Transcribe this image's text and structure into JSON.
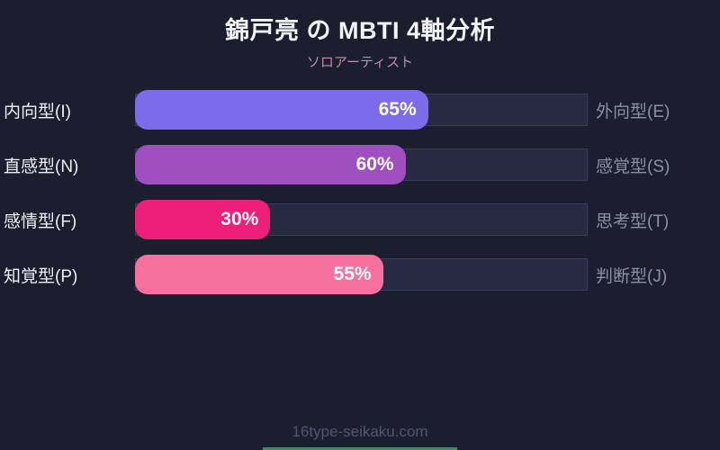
{
  "header": {
    "title": "錦戸亮 の MBTI 4軸分析",
    "subtitle": "ソロアーティスト"
  },
  "footer": {
    "site": "16type-seikaku.com"
  },
  "colors": {
    "background": "#1b1e2f",
    "track": "#272b42",
    "track_border": "#3a3e5c",
    "title_text": "#f5f5f8",
    "subtitle_text": "#c48ea8",
    "left_label_text": "#eef0f5",
    "right_label_text": "#8b90a6",
    "footer_text": "#525770",
    "bottom_accent": "#3e8e5a"
  },
  "chart_data": {
    "type": "bar",
    "orientation": "horizontal",
    "title": "錦戸亮 の MBTI 4軸分析",
    "subtitle": "ソロアーティスト",
    "xlim": [
      0,
      100
    ],
    "grid": false,
    "legend": false,
    "rows": [
      {
        "left_label": "内向型(I)",
        "right_label": "外向型(E)",
        "value": 65,
        "value_label": "65%",
        "color": "#7c6bea"
      },
      {
        "left_label": "直感型(N)",
        "right_label": "感覚型(S)",
        "value": 60,
        "value_label": "60%",
        "color": "#a04fc0"
      },
      {
        "left_label": "感情型(F)",
        "right_label": "思考型(T)",
        "value": 30,
        "value_label": "30%",
        "color": "#ee1f7a"
      },
      {
        "left_label": "知覚型(P)",
        "right_label": "判断型(J)",
        "value": 55,
        "value_label": "55%",
        "color": "#f8709e"
      }
    ]
  }
}
